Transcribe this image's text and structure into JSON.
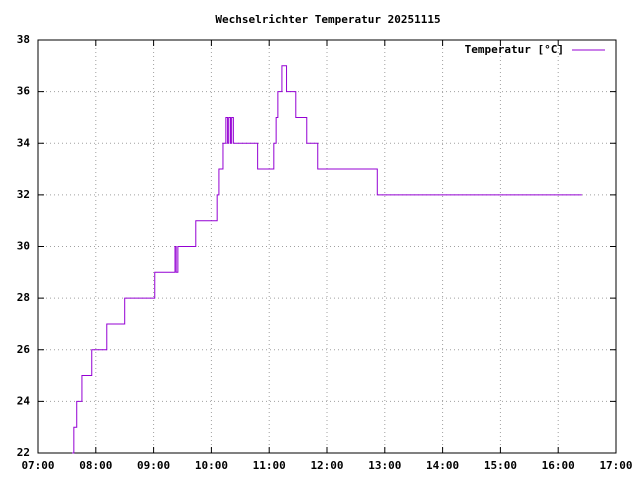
{
  "chart_data": {
    "type": "line",
    "title": "Wechselrichter Temperatur 20251115",
    "xlim": [
      7,
      17
    ],
    "xticks": [
      {
        "value": 7,
        "label": "07:00"
      },
      {
        "value": 8,
        "label": "08:00"
      },
      {
        "value": 9,
        "label": "09:00"
      },
      {
        "value": 10,
        "label": "10:00"
      },
      {
        "value": 11,
        "label": "11:00"
      },
      {
        "value": 12,
        "label": "12:00"
      },
      {
        "value": 13,
        "label": "13:00"
      },
      {
        "value": 14,
        "label": "14:00"
      },
      {
        "value": 15,
        "label": "15:00"
      },
      {
        "value": 16,
        "label": "16:00"
      },
      {
        "value": 17,
        "label": "17:00"
      }
    ],
    "ylim": [
      22,
      38
    ],
    "yticks": [
      22,
      24,
      26,
      28,
      30,
      32,
      34,
      36,
      38
    ],
    "grid": true,
    "legend": "top-right",
    "series": [
      {
        "name": "Temperatur [°C]",
        "color": "#9400d3",
        "x": [
          7.59,
          7.62,
          7.62,
          7.67,
          7.67,
          7.76,
          7.76,
          7.93,
          7.93,
          8.19,
          8.19,
          8.5,
          8.5,
          9.02,
          9.02,
          9.37,
          9.37,
          9.39,
          9.39,
          9.42,
          9.42,
          9.73,
          9.73,
          10.1,
          10.1,
          10.13,
          10.13,
          10.2,
          10.2,
          10.25,
          10.25,
          10.28,
          10.28,
          10.3,
          10.3,
          10.33,
          10.33,
          10.35,
          10.35,
          10.38,
          10.38,
          10.8,
          10.8,
          11.08,
          11.08,
          11.12,
          11.12,
          11.15,
          11.15,
          11.22,
          11.22,
          11.3,
          11.3,
          11.46,
          11.46,
          11.65,
          11.65,
          11.84,
          11.84,
          12.87,
          12.87,
          16.41
        ],
        "values": [
          22,
          22,
          23,
          23,
          24,
          24,
          25,
          25,
          26,
          26,
          27,
          27,
          28,
          28,
          29,
          29,
          30,
          30,
          29,
          29,
          30,
          30,
          31,
          31,
          32,
          32,
          33,
          33,
          34,
          34,
          35,
          35,
          34,
          34,
          35,
          35,
          34,
          34,
          35,
          35,
          34,
          34,
          33,
          33,
          34,
          34,
          35,
          35,
          36,
          36,
          37,
          37,
          36,
          36,
          35,
          35,
          34,
          34,
          33,
          33,
          32,
          32
        ]
      }
    ]
  }
}
